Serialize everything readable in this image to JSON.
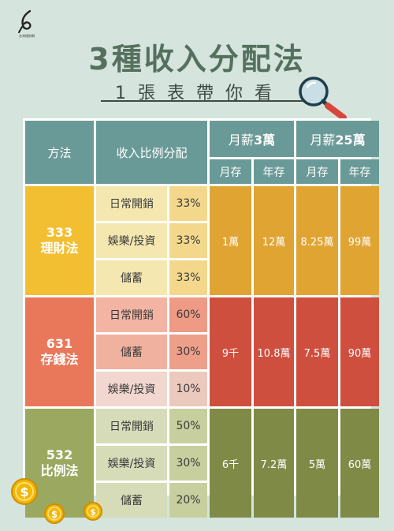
{
  "logo": {
    "text": "台灣理財網",
    "icon": "brush-logo-icon"
  },
  "title": "3種收入分配法",
  "subtitle": "1張表帶你看",
  "table": {
    "header": {
      "method": "方法",
      "allocation": "收入比例分配",
      "salary1_prefix": "月薪",
      "salary1_amount": "3萬",
      "salary2_prefix": "月薪",
      "salary2_amount": "25萬",
      "monthly": "月存",
      "yearly": "年存"
    },
    "methods": [
      {
        "line1": "333",
        "line2": "理財法",
        "color": "#f3bf32",
        "rows": [
          {
            "category": "日常開銷",
            "percent": "33%"
          },
          {
            "category": "娛樂/投資",
            "percent": "33%"
          },
          {
            "category": "儲蓄",
            "percent": "33%"
          }
        ],
        "s1_month": "1萬",
        "s1_year": "12萬",
        "s2_month": "8.25萬",
        "s2_year": "99萬"
      },
      {
        "line1": "631",
        "line2": "存錢法",
        "color": "#e9785a",
        "rows": [
          {
            "category": "日常開銷",
            "percent": "60%"
          },
          {
            "category": "儲蓄",
            "percent": "30%"
          },
          {
            "category": "娛樂/投資",
            "percent": "10%"
          }
        ],
        "s1_month": "9千",
        "s1_year": "10.8萬",
        "s2_month": "7.5萬",
        "s2_year": "90萬"
      },
      {
        "line1": "532",
        "line2": "比例法",
        "color": "#9aa95f",
        "rows": [
          {
            "category": "日常開銷",
            "percent": "50%"
          },
          {
            "category": "娛樂/投資",
            "percent": "30%"
          },
          {
            "category": "儲蓄",
            "percent": "20%"
          }
        ],
        "s1_month": "6千",
        "s1_year": "7.2萬",
        "s2_month": "5萬",
        "s2_year": "60萬"
      }
    ]
  },
  "decor": {
    "magnifier_icon": "magnifier-icon",
    "coin_icon": "dollar-coin-icon"
  }
}
